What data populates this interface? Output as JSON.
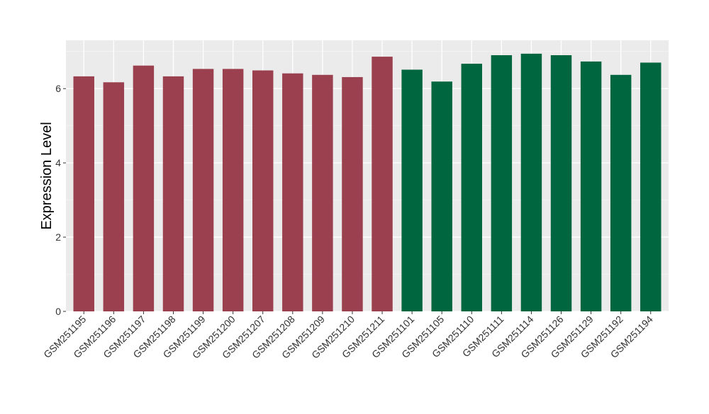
{
  "chart_data": {
    "type": "bar",
    "title": "",
    "xlabel": "",
    "ylabel": "Expression Level",
    "ylim": [
      0,
      7.3
    ],
    "yticks": [
      0,
      2,
      4,
      6
    ],
    "ytick_labels": [
      "0",
      "2",
      "4",
      "6"
    ],
    "grid": true,
    "categories": [
      "GSM251195",
      "GSM251196",
      "GSM251197",
      "GSM251198",
      "GSM251199",
      "GSM251200",
      "GSM251207",
      "GSM251208",
      "GSM251209",
      "GSM251210",
      "GSM251211",
      "GSM251101",
      "GSM251105",
      "GSM251110",
      "GSM251111",
      "GSM251114",
      "GSM251126",
      "GSM251129",
      "GSM251192",
      "GSM251194"
    ],
    "values": [
      6.33,
      6.17,
      6.62,
      6.33,
      6.53,
      6.53,
      6.49,
      6.41,
      6.37,
      6.31,
      6.86,
      6.51,
      6.19,
      6.67,
      6.9,
      6.94,
      6.9,
      6.73,
      6.37,
      6.7
    ],
    "groups": [
      0,
      0,
      0,
      0,
      0,
      0,
      0,
      0,
      0,
      0,
      0,
      1,
      1,
      1,
      1,
      1,
      1,
      1,
      1,
      1
    ],
    "group_colors": [
      "#9b404f",
      "#006640"
    ]
  },
  "colors": {
    "panel_background": "#ebebeb",
    "grid_major": "#ffffff",
    "grid_minor": "#f5f5f5"
  }
}
